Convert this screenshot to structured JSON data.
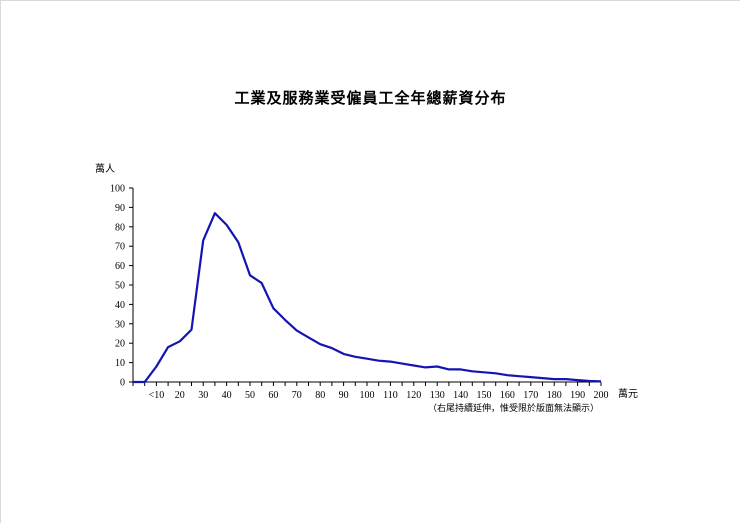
{
  "chart_data": {
    "type": "line",
    "title": "工業及服務業受僱員工全年總薪資分布",
    "ylabel": "萬人",
    "xlabel_unit": "萬元",
    "note": "（右尾持續延伸，惟受限於版面無法顯示）",
    "ylim": [
      0,
      100
    ],
    "yticks": [
      0,
      10,
      20,
      30,
      40,
      50,
      60,
      70,
      80,
      90,
      100
    ],
    "xlim": [
      0,
      200
    ],
    "xtick_labels": [
      "<10",
      "20",
      "30",
      "40",
      "50",
      "60",
      "70",
      "80",
      "90",
      "100",
      "110",
      "120",
      "130",
      "140",
      "150",
      "160",
      "170",
      "180",
      "190",
      "200"
    ],
    "grid": false,
    "series": [
      {
        "color": "#1414b4",
        "x": [
          0,
          5,
          10,
          15,
          20,
          25,
          30,
          35,
          40,
          45,
          50,
          55,
          60,
          65,
          70,
          75,
          80,
          85,
          90,
          95,
          100,
          105,
          110,
          115,
          120,
          125,
          130,
          135,
          140,
          145,
          150,
          155,
          160,
          165,
          170,
          175,
          180,
          185,
          190,
          195,
          200
        ],
        "y": [
          0,
          0,
          8,
          18,
          21,
          27,
          73,
          87,
          81,
          72,
          55,
          51,
          38,
          32,
          26.5,
          23,
          19.5,
          17.5,
          14.5,
          13,
          12,
          11,
          10.5,
          9.5,
          8.5,
          7.5,
          8,
          6.5,
          6.5,
          5.5,
          5,
          4.5,
          3.5,
          3,
          2.5,
          2,
          1.5,
          1.5,
          1,
          0.5,
          0.3
        ]
      }
    ]
  }
}
